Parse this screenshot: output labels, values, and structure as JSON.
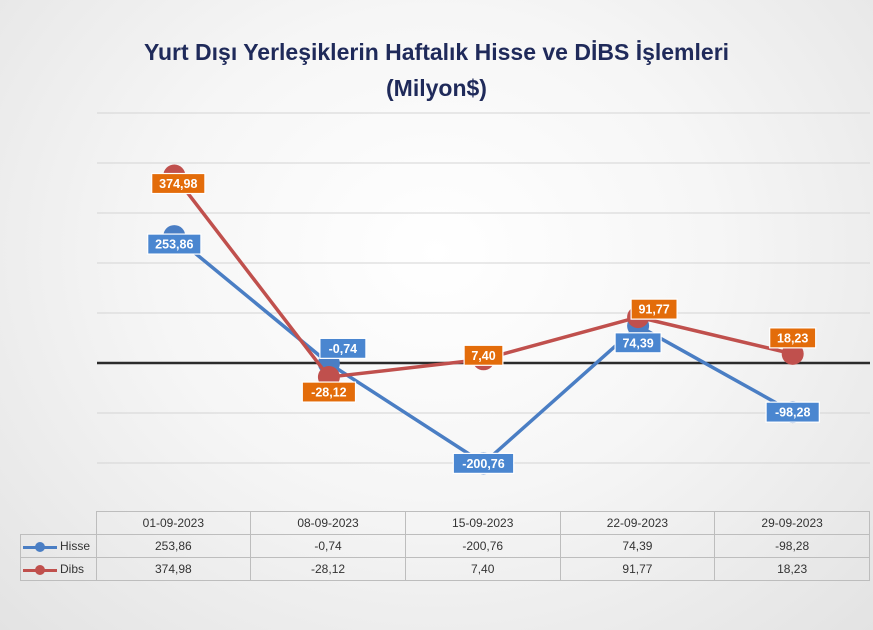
{
  "chart_data": {
    "type": "line",
    "title": "Yurt Dışı Yerleşiklerin Haftalık Hisse ve DİBS İşlemleri",
    "subtitle": "(Milyon$)",
    "categories": [
      "01-09-2023",
      "08-09-2023",
      "15-09-2023",
      "22-09-2023",
      "29-09-2023"
    ],
    "series": [
      {
        "name": "Hisse",
        "values": [
          253.86,
          -0.74,
          -200.76,
          74.39,
          -98.28
        ],
        "labels": [
          "253,86",
          "-0,74",
          "-200,76",
          "74,39",
          "-98,28"
        ],
        "color": "#4a7ec4",
        "label_color": "#4a86d0"
      },
      {
        "name": "Dibs",
        "values": [
          374.98,
          -28.12,
          7.4,
          91.77,
          18.23
        ],
        "labels": [
          "374,98",
          "-28,12",
          "7,40",
          "91,77",
          "18,23"
        ],
        "color": "#c0504d",
        "label_color": "#e36c0a"
      }
    ],
    "ylim": [
      -300,
      500
    ],
    "gridlines": true,
    "zero_line": true,
    "legend": "data-table"
  }
}
